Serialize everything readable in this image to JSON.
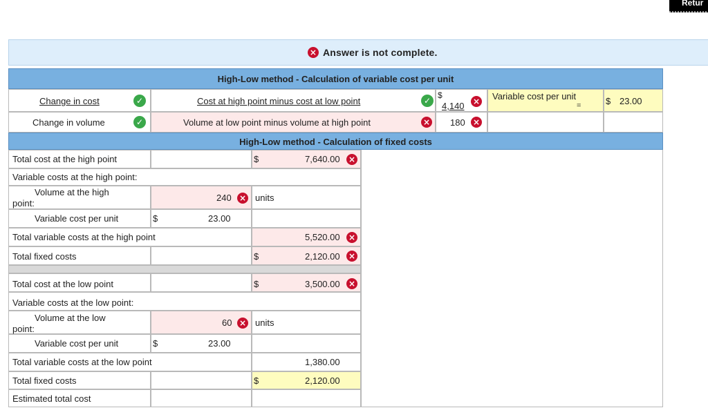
{
  "return_button": "Retur",
  "banner": {
    "message": "Answer is not complete."
  },
  "var_section": {
    "title": "High-Low method - Calculation of variable cost per unit",
    "row1": {
      "label": "Change in cost",
      "formula": "Cost at high point minus cost at low point",
      "dollar": "$",
      "value": "4,140",
      "result_label": "Variable cost per unit",
      "eq": "=",
      "result_dollar": "$",
      "result_value": "23.00"
    },
    "row2": {
      "label": "Change in volume",
      "formula": "Volume at low point minus volume at high point",
      "value": "180"
    }
  },
  "fixed_section": {
    "title": "High-Low method - Calculation of fixed costs",
    "high": {
      "total_cost_label": "Total cost at the high point",
      "total_cost_dollar": "$",
      "total_cost": "7,640.00",
      "var_costs_label": "Variable costs at the high point:",
      "volume_label_1": "Volume at the high",
      "volume_label_2": "point:",
      "volume": "240",
      "units": "units",
      "vcpu_label": "Variable cost per unit",
      "vcpu_dollar": "$",
      "vcpu": "23.00",
      "total_var_label": "Total variable costs at the high point",
      "total_var": "5,520.00",
      "fixed_label": "Total fixed costs",
      "fixed_dollar": "$",
      "fixed": "2,120.00"
    },
    "low": {
      "total_cost_label": "Total cost at the low point",
      "total_cost_dollar": "$",
      "total_cost": "3,500.00",
      "var_costs_label": "Variable costs at the low point:",
      "volume_label_1": "Volume at the low",
      "volume_label_2": "point:",
      "volume": "60",
      "units": "units",
      "vcpu_label": "Variable cost per unit",
      "vcpu_dollar": "$",
      "vcpu": "23.00",
      "total_var_label": "Total variable costs at the low point",
      "total_var": "1,380.00",
      "fixed_label": "Total fixed costs",
      "fixed_dollar": "$",
      "fixed": "2,120.00",
      "estimated_label": "Estimated total cost"
    }
  },
  "icons": {
    "incorrect": "×",
    "correct": "✓"
  },
  "colors": {
    "header": "#78b0e0",
    "banner": "#deeefb",
    "incorrect": "#c8102e",
    "correct": "#3aa84a",
    "input_pink": "#fde9e9",
    "answer_yellow": "#fefcbf"
  }
}
